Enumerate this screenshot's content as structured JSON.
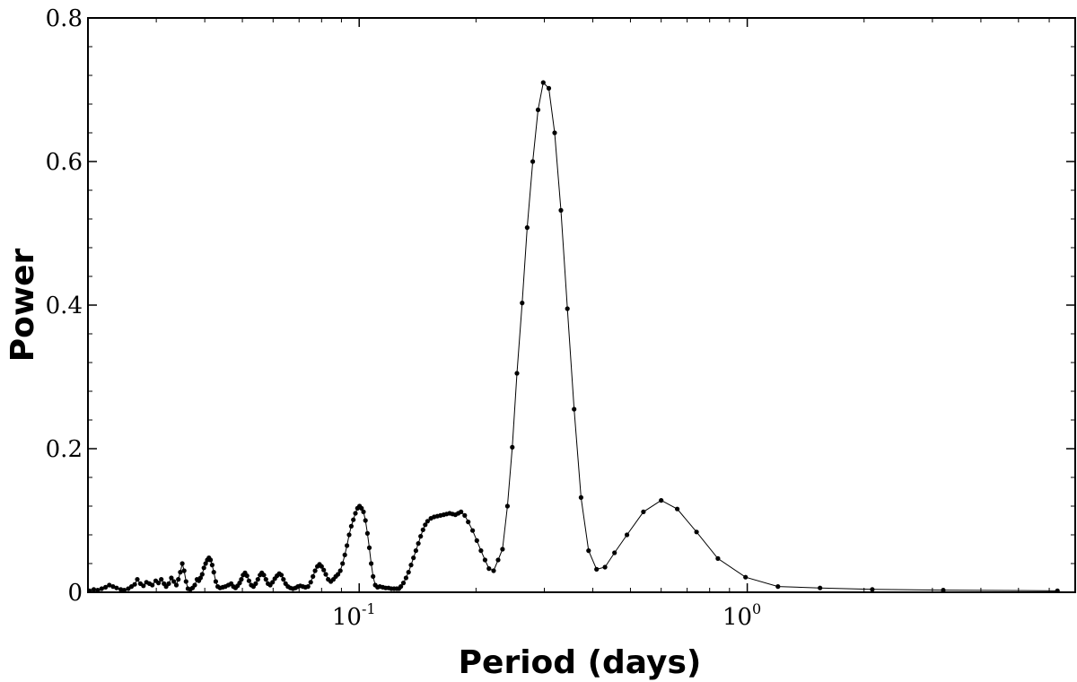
{
  "chart_data": {
    "type": "line",
    "title": "",
    "xlabel": "Period (days)",
    "ylabel": "Power",
    "xscale": "log",
    "xlim": [
      0.02,
      7.0
    ],
    "ylim": [
      0,
      0.8
    ],
    "grid": false,
    "legend": "none",
    "line_color": "#000000",
    "marker": "dot",
    "x_ticks": [
      {
        "value": 0.1,
        "base": "10",
        "exponent": "-1"
      },
      {
        "value": 1.0,
        "base": "10",
        "exponent": "0"
      }
    ],
    "y_ticks": [
      {
        "value": 0,
        "label": "0"
      },
      {
        "value": 0.2,
        "label": "0.2"
      },
      {
        "value": 0.4,
        "label": "0.4"
      },
      {
        "value": 0.6,
        "label": "0.6"
      },
      {
        "value": 0.8,
        "label": "0.8"
      }
    ],
    "series": [
      {
        "points": [
          [
            0.0202,
            0.002
          ],
          [
            0.0207,
            0.004
          ],
          [
            0.0212,
            0.003
          ],
          [
            0.0217,
            0.005
          ],
          [
            0.0222,
            0.007
          ],
          [
            0.0227,
            0.01
          ],
          [
            0.0232,
            0.008
          ],
          [
            0.0237,
            0.006
          ],
          [
            0.0243,
            0.004
          ],
          [
            0.0248,
            0.003
          ],
          [
            0.0254,
            0.005
          ],
          [
            0.0259,
            0.008
          ],
          [
            0.0264,
            0.011
          ],
          [
            0.0268,
            0.018
          ],
          [
            0.0273,
            0.012
          ],
          [
            0.0278,
            0.009
          ],
          [
            0.0283,
            0.014
          ],
          [
            0.0288,
            0.012
          ],
          [
            0.0293,
            0.01
          ],
          [
            0.0299,
            0.016
          ],
          [
            0.0304,
            0.013
          ],
          [
            0.0309,
            0.018
          ],
          [
            0.0314,
            0.012
          ],
          [
            0.0318,
            0.008
          ],
          [
            0.0323,
            0.012
          ],
          [
            0.0328,
            0.02
          ],
          [
            0.0333,
            0.015
          ],
          [
            0.0338,
            0.01
          ],
          [
            0.0342,
            0.018
          ],
          [
            0.0346,
            0.028
          ],
          [
            0.035,
            0.04
          ],
          [
            0.0354,
            0.03
          ],
          [
            0.0358,
            0.015
          ],
          [
            0.0362,
            0.005
          ],
          [
            0.0367,
            0.004
          ],
          [
            0.0372,
            0.006
          ],
          [
            0.0377,
            0.01
          ],
          [
            0.0382,
            0.018
          ],
          [
            0.0386,
            0.016
          ],
          [
            0.039,
            0.02
          ],
          [
            0.0394,
            0.025
          ],
          [
            0.0398,
            0.034
          ],
          [
            0.0402,
            0.04
          ],
          [
            0.0406,
            0.045
          ],
          [
            0.041,
            0.048
          ],
          [
            0.0414,
            0.045
          ],
          [
            0.0418,
            0.038
          ],
          [
            0.0422,
            0.028
          ],
          [
            0.0427,
            0.015
          ],
          [
            0.0432,
            0.008
          ],
          [
            0.0438,
            0.006
          ],
          [
            0.0445,
            0.007
          ],
          [
            0.0452,
            0.008
          ],
          [
            0.046,
            0.01
          ],
          [
            0.0468,
            0.012
          ],
          [
            0.0474,
            0.008
          ],
          [
            0.048,
            0.006
          ],
          [
            0.0486,
            0.009
          ],
          [
            0.0492,
            0.013
          ],
          [
            0.0497,
            0.018
          ],
          [
            0.0502,
            0.024
          ],
          [
            0.0508,
            0.027
          ],
          [
            0.0514,
            0.023
          ],
          [
            0.052,
            0.016
          ],
          [
            0.0527,
            0.01
          ],
          [
            0.0534,
            0.008
          ],
          [
            0.0541,
            0.012
          ],
          [
            0.0548,
            0.018
          ],
          [
            0.0555,
            0.024
          ],
          [
            0.0561,
            0.027
          ],
          [
            0.0568,
            0.024
          ],
          [
            0.0575,
            0.018
          ],
          [
            0.0582,
            0.012
          ],
          [
            0.059,
            0.01
          ],
          [
            0.0598,
            0.014
          ],
          [
            0.0606,
            0.019
          ],
          [
            0.0614,
            0.023
          ],
          [
            0.0622,
            0.026
          ],
          [
            0.063,
            0.024
          ],
          [
            0.0638,
            0.018
          ],
          [
            0.0646,
            0.012
          ],
          [
            0.0655,
            0.008
          ],
          [
            0.0665,
            0.006
          ],
          [
            0.0675,
            0.005
          ],
          [
            0.0685,
            0.006
          ],
          [
            0.0695,
            0.008
          ],
          [
            0.0705,
            0.009
          ],
          [
            0.0716,
            0.008
          ],
          [
            0.0727,
            0.007
          ],
          [
            0.0738,
            0.008
          ],
          [
            0.075,
            0.014
          ],
          [
            0.076,
            0.022
          ],
          [
            0.077,
            0.03
          ],
          [
            0.078,
            0.036
          ],
          [
            0.079,
            0.039
          ],
          [
            0.08,
            0.036
          ],
          [
            0.081,
            0.031
          ],
          [
            0.082,
            0.025
          ],
          [
            0.0832,
            0.018
          ],
          [
            0.0845,
            0.015
          ],
          [
            0.0858,
            0.018
          ],
          [
            0.087,
            0.022
          ],
          [
            0.0882,
            0.025
          ],
          [
            0.0894,
            0.03
          ],
          [
            0.0906,
            0.04
          ],
          [
            0.0918,
            0.052
          ],
          [
            0.093,
            0.065
          ],
          [
            0.0942,
            0.08
          ],
          [
            0.0954,
            0.092
          ],
          [
            0.0966,
            0.101
          ],
          [
            0.0978,
            0.11
          ],
          [
            0.099,
            0.117
          ],
          [
            0.1002,
            0.12
          ],
          [
            0.1014,
            0.117
          ],
          [
            0.1026,
            0.112
          ],
          [
            0.1038,
            0.1
          ],
          [
            0.105,
            0.082
          ],
          [
            0.1062,
            0.062
          ],
          [
            0.1074,
            0.04
          ],
          [
            0.1086,
            0.022
          ],
          [
            0.11,
            0.01
          ],
          [
            0.1115,
            0.007
          ],
          [
            0.113,
            0.008
          ],
          [
            0.115,
            0.007
          ],
          [
            0.117,
            0.006
          ],
          [
            0.119,
            0.006
          ],
          [
            0.121,
            0.005
          ],
          [
            0.123,
            0.005
          ],
          [
            0.125,
            0.005
          ],
          [
            0.1265,
            0.005
          ],
          [
            0.128,
            0.008
          ],
          [
            0.13,
            0.013
          ],
          [
            0.132,
            0.02
          ],
          [
            0.134,
            0.028
          ],
          [
            0.136,
            0.038
          ],
          [
            0.138,
            0.048
          ],
          [
            0.14,
            0.058
          ],
          [
            0.142,
            0.068
          ],
          [
            0.144,
            0.078
          ],
          [
            0.146,
            0.087
          ],
          [
            0.148,
            0.094
          ],
          [
            0.15,
            0.099
          ],
          [
            0.153,
            0.103
          ],
          [
            0.156,
            0.105
          ],
          [
            0.159,
            0.106
          ],
          [
            0.162,
            0.107
          ],
          [
            0.165,
            0.108
          ],
          [
            0.168,
            0.109
          ],
          [
            0.171,
            0.11
          ],
          [
            0.174,
            0.109
          ],
          [
            0.177,
            0.108
          ],
          [
            0.18,
            0.11
          ],
          [
            0.183,
            0.112
          ],
          [
            0.187,
            0.107
          ],
          [
            0.191,
            0.098
          ],
          [
            0.196,
            0.086
          ],
          [
            0.201,
            0.072
          ],
          [
            0.206,
            0.058
          ],
          [
            0.211,
            0.045
          ],
          [
            0.216,
            0.033
          ],
          [
            0.222,
            0.03
          ],
          [
            0.228,
            0.045
          ],
          [
            0.234,
            0.06
          ],
          [
            0.241,
            0.12
          ],
          [
            0.248,
            0.202
          ],
          [
            0.255,
            0.305
          ],
          [
            0.263,
            0.403
          ],
          [
            0.271,
            0.508
          ],
          [
            0.28,
            0.6
          ],
          [
            0.289,
            0.672
          ],
          [
            0.298,
            0.71
          ],
          [
            0.308,
            0.702
          ],
          [
            0.319,
            0.64
          ],
          [
            0.331,
            0.532
          ],
          [
            0.344,
            0.395
          ],
          [
            0.358,
            0.255
          ],
          [
            0.373,
            0.132
          ],
          [
            0.39,
            0.058
          ],
          [
            0.409,
            0.032
          ],
          [
            0.43,
            0.035
          ],
          [
            0.455,
            0.055
          ],
          [
            0.49,
            0.08
          ],
          [
            0.54,
            0.112
          ],
          [
            0.6,
            0.128
          ],
          [
            0.66,
            0.116
          ],
          [
            0.74,
            0.084
          ],
          [
            0.84,
            0.047
          ],
          [
            0.99,
            0.021
          ],
          [
            1.2,
            0.008
          ],
          [
            1.54,
            0.006
          ],
          [
            2.1,
            0.004
          ],
          [
            3.2,
            0.003
          ],
          [
            6.3,
            0.002
          ]
        ]
      }
    ]
  }
}
